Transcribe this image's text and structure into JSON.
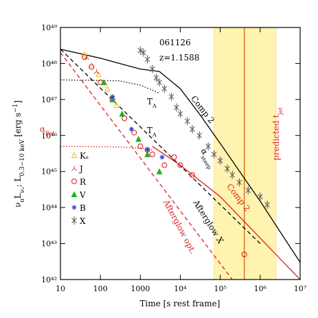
{
  "chart_data": {
    "type": "scatter",
    "xlabel": "Time [s rest frame]",
    "ylabel": [
      {
        "text": "ν"
      },
      {
        "text": "o",
        "sub": true
      },
      {
        "text": "L"
      },
      {
        "text": "νₒ",
        "sub": true
      },
      {
        "text": ";  L"
      },
      {
        "text": "0.3−10 keV",
        "sub": true
      },
      {
        "text": " [erg s"
      },
      {
        "text": "−1",
        "sup": true
      },
      {
        "text": "]"
      }
    ],
    "log_x": true,
    "log_y": true,
    "xlim": [
      10,
      10000000
    ],
    "ylim": [
      1e+42,
      1e+49
    ],
    "xticks": [
      10,
      100,
      1000,
      {
        "value": 10000,
        "label": "10⁴"
      },
      {
        "value": 100000,
        "label": "10⁵"
      },
      {
        "value": 1000000,
        "label": "10⁶"
      },
      {
        "value": 10000000,
        "label": "10⁷"
      }
    ],
    "yticks": [
      {
        "value": 1e+42,
        "label": "10⁴²"
      },
      {
        "value": 1e+43,
        "label": "10⁴³"
      },
      {
        "value": 1e+44,
        "label": "10⁴⁴"
      },
      {
        "value": 1e+45,
        "label": "10⁴⁵"
      },
      {
        "value": 1e+46,
        "label": "10⁴⁶"
      },
      {
        "value": 1e+47,
        "label": "10⁴⁷"
      },
      {
        "value": 1e+48,
        "label": "10⁴⁸"
      },
      {
        "value": 1e+49,
        "label": "10⁴⁹"
      }
    ],
    "jet_band": [
      70000,
      2500000
    ],
    "jet_band_color": "#fff3b0",
    "jet_time": 400000,
    "jet_color": "#e07020",
    "series": [
      {
        "name": "Kₛ",
        "color": "#f0c020",
        "marker": "triangle-open",
        "x": [
          40,
          60,
          90,
          150,
          250
        ],
        "values": [
          1.8e+48,
          9e+47,
          5e+47,
          2e+47,
          7e+46
        ]
      },
      {
        "name": "J",
        "color": "#e05050",
        "marker": "tri-small",
        "x": [
          45,
          80,
          130
        ],
        "values": [
          1.5e+48,
          6e+47,
          3e+47
        ]
      },
      {
        "name": "R",
        "color": "#e02020",
        "marker": "circle-open",
        "x": [
          40,
          60,
          100,
          200,
          400,
          700,
          1000,
          1500,
          2000,
          4000,
          7000,
          10000,
          20000,
          400000
        ],
        "values": [
          1.5e+48,
          8e+47,
          3e+47,
          1e+47,
          3e+46,
          1.2e+46,
          5e+45,
          4e+45,
          3e+45,
          1.5e+45,
          2.5e+45,
          1.5e+45,
          8e+44,
          5e+42
        ]
      },
      {
        "name": "V",
        "color": "#20b020",
        "marker": "triangle-filled",
        "x": [
          120,
          200,
          350,
          900,
          1500,
          3000
        ],
        "values": [
          3e+47,
          1e+47,
          4e+46,
          8e+45,
          3e+45,
          1e+45
        ]
      },
      {
        "name": "B",
        "color": "#2040e0",
        "marker": "star",
        "x": [
          200,
          600,
          1500,
          3500
        ],
        "values": [
          1.2e+47,
          1.5e+46,
          4e+45,
          2.5e+45
        ]
      },
      {
        "name": "X",
        "color": "#606060",
        "marker": "cross",
        "x": [
          1000,
          1200,
          1500,
          2000,
          2500,
          3000,
          4000,
          6000,
          8000,
          10000,
          15000,
          20000,
          30000,
          50000,
          70000,
          100000,
          150000,
          200000,
          300000,
          500000,
          1000000,
          1500000
        ],
        "values": [
          2.3e+48,
          2e+48,
          1.3e+48,
          7e+47,
          4e+47,
          3e+47,
          2e+47,
          1.2e+47,
          6e+46,
          4e+46,
          2.5e+46,
          1.5e+46,
          1e+46,
          5e+45,
          3e+45,
          2e+45,
          1.2e+45,
          8e+44,
          5e+44,
          3e+44,
          2e+44,
          1.2e+44
        ]
      }
    ],
    "curves": [
      {
        "color": "#000000",
        "style": "solid",
        "x": [
          10,
          100,
          300,
          1000,
          3000,
          10000,
          30000,
          100000,
          1000000,
          10000000
        ],
        "values": [
          2.5e+48,
          1.4e+48,
          1e+48,
          7e+47,
          6e+47,
          2e+47,
          4e+46,
          6e+45,
          1.5e+44,
          3e+42
        ]
      },
      {
        "color": "#000000",
        "style": "dotted",
        "x": [
          10,
          300,
          1000,
          3000
        ],
        "values": [
          3.5e+47,
          3.3e+47,
          2.5e+47,
          1.5e+47
        ]
      },
      {
        "color": "#000000",
        "style": "dashed",
        "x": [
          10,
          1000000
        ],
        "values": [
          2.5e+48,
          1e+43
        ]
      },
      {
        "color": "#e02020",
        "style": "solid",
        "x": [
          2000,
          10000,
          100000,
          10000000
        ],
        "values": [
          5e+45,
          1.5e+45,
          2e+44,
          1e+42
        ]
      },
      {
        "color": "#e02020",
        "style": "dotted",
        "x": [
          10,
          300,
          1000,
          2000
        ],
        "values": [
          5e+45,
          4.8e+45,
          4.5e+45,
          4e+45
        ]
      },
      {
        "color": "#e02020",
        "style": "dashed",
        "x": [
          10,
          200000
        ],
        "values": [
          2e+48,
          1e+42
        ]
      }
    ],
    "annotations": [
      {
        "text": "061126",
        "color": "#000000"
      },
      {
        "text": "z=1.1588",
        "color": "#000000"
      },
      {
        "text": "T",
        "sub": "A",
        "color": "#000000"
      },
      {
        "text": "T",
        "sub": "A",
        "color": "#000000"
      },
      {
        "text": "Comp 2",
        "color": "#000000"
      },
      {
        "text": "α",
        "sub": "steep",
        "color": "#000000"
      },
      {
        "text": "Comp 2",
        "color": "#e02020"
      },
      {
        "text": "Afterglow X",
        "color": "#000000"
      },
      {
        "text": "Afterglow opt.",
        "color": "#e02020"
      },
      {
        "text": "predicted t",
        "sub": "jet",
        "color": "#e02020"
      },
      {
        "text": "α",
        "sub": "flat",
        "color": "#e02020"
      }
    ]
  }
}
